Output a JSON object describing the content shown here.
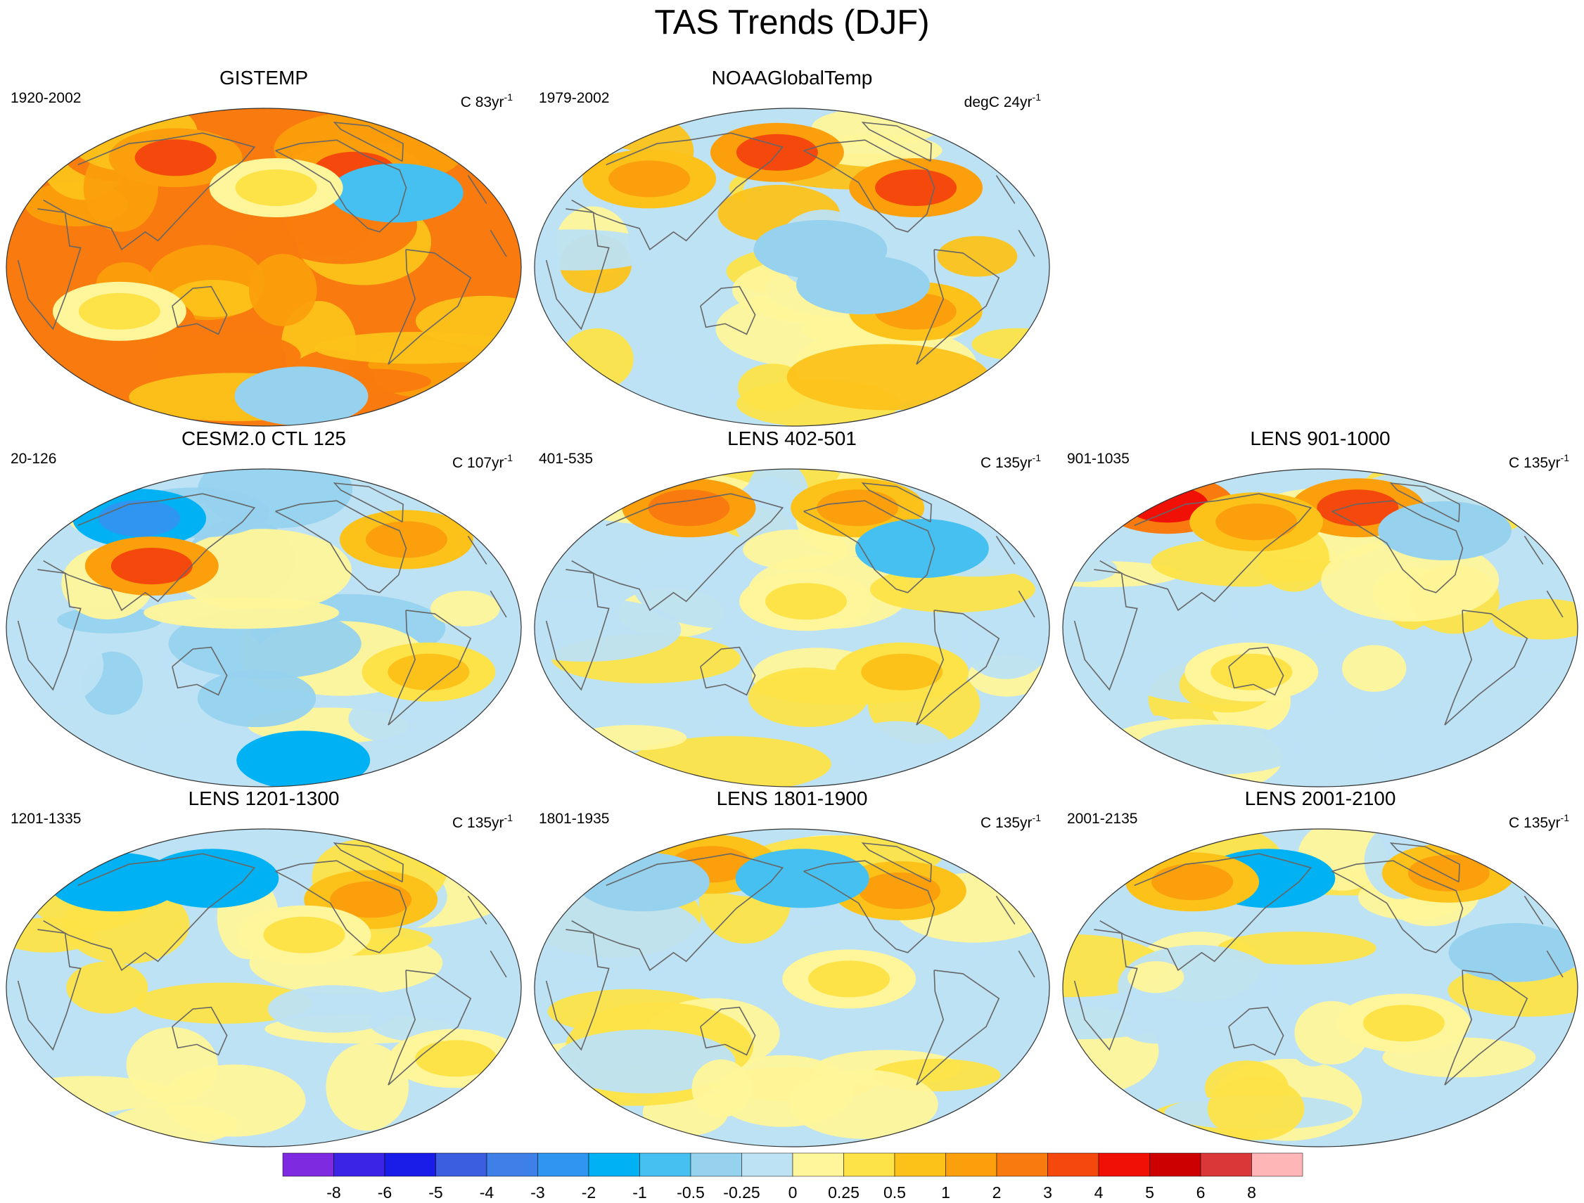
{
  "title": "TAS Trends (DJF)",
  "chart_data": [
    {
      "type": "heatmap",
      "title": "GISTEMP",
      "period": "1920-2002",
      "units": "C 83yr",
      "units_sup": "-1",
      "dominant": [
        2,
        1,
        0.5
      ],
      "features": [
        {
          "lon": -100,
          "lat": 55,
          "v": 3
        },
        {
          "lon": 95,
          "lat": 62,
          "v": 3
        },
        {
          "lon": -75,
          "lat": 42,
          "v": -1
        },
        {
          "lon": -170,
          "lat": 45,
          "v": 0.25
        },
        {
          "lon": 75,
          "lat": -25,
          "v": 0.25
        },
        {
          "lon": -135,
          "lat": -73,
          "v": -0.5
        }
      ]
    },
    {
      "type": "heatmap",
      "title": "NOAAGlobalTemp",
      "period": "1979-2002",
      "units": "degC 24yr",
      "units_sup": "-1",
      "dominant": [
        -0.25,
        0,
        0.25,
        0.5
      ],
      "features": [
        {
          "lon": -160,
          "lat": 10,
          "v": -0.5
        },
        {
          "lon": -90,
          "lat": -25,
          "v": 1
        },
        {
          "lon": -80,
          "lat": 45,
          "v": 3
        },
        {
          "lon": 165,
          "lat": 65,
          "v": 3
        },
        {
          "lon": -130,
          "lat": -10,
          "v": -0.5
        },
        {
          "lon": 60,
          "lat": 50,
          "v": 1
        }
      ]
    },
    {
      "type": "heatmap",
      "title": "CESM2.0 CTL 125",
      "period": "20-126",
      "units": "C 107yr",
      "units_sup": "-1",
      "dominant": [
        -0.25,
        0,
        -0.5
      ],
      "features": [
        {
          "lon": 60,
          "lat": 62,
          "v": -3
        },
        {
          "lon": -60,
          "lat": 50,
          "v": 1
        },
        {
          "lon": -130,
          "lat": -75,
          "v": -2
        },
        {
          "lon": 95,
          "lat": 35,
          "v": 3
        },
        {
          "lon": -60,
          "lat": -25,
          "v": 0.5
        }
      ]
    },
    {
      "type": "heatmap",
      "title": "LENS 402-501",
      "period": "401-535",
      "units": "C 135yr",
      "units_sup": "-1",
      "dominant": [
        -0.25,
        0,
        0.25
      ],
      "features": [
        {
          "lon": 70,
          "lat": 68,
          "v": 2
        },
        {
          "lon": -110,
          "lat": 68,
          "v": 1
        },
        {
          "lon": -100,
          "lat": -25,
          "v": 0.5
        },
        {
          "lon": -170,
          "lat": 15,
          "v": 0.25
        },
        {
          "lon": -75,
          "lat": 45,
          "v": -1
        }
      ]
    },
    {
      "type": "heatmap",
      "title": "LENS 901-1000",
      "period": "901-1035",
      "units": "C 135yr",
      "units_sup": "-1",
      "dominant": [
        -0.25,
        0,
        0.25
      ],
      "features": [
        {
          "lon": 10,
          "lat": 70,
          "v": 4
        },
        {
          "lon": -140,
          "lat": 68,
          "v": 3
        },
        {
          "lon": 120,
          "lat": 60,
          "v": 1
        },
        {
          "lon": -70,
          "lat": 55,
          "v": -0.5
        },
        {
          "lon": 130,
          "lat": -25,
          "v": 0.25
        }
      ]
    },
    {
      "type": "heatmap",
      "title": "LENS 1201-1300",
      "period": "1201-1335",
      "units": "C 135yr",
      "units_sup": "-1",
      "dominant": [
        -0.25,
        0,
        0.25
      ],
      "features": [
        {
          "lon": 40,
          "lat": 60,
          "v": -2
        },
        {
          "lon": 130,
          "lat": 62,
          "v": -2
        },
        {
          "lon": -90,
          "lat": 50,
          "v": 1
        },
        {
          "lon": -150,
          "lat": 30,
          "v": 0.25
        },
        {
          "lon": -30,
          "lat": -40,
          "v": 0.25
        }
      ]
    },
    {
      "type": "heatmap",
      "title": "LENS 1801-1900",
      "period": "1801-1935",
      "units": "C 135yr",
      "units_sup": "-1",
      "dominant": [
        -0.25,
        0,
        0.25
      ],
      "features": [
        {
          "lon": -85,
          "lat": 55,
          "v": 1
        },
        {
          "lon": 90,
          "lat": 70,
          "v": 1
        },
        {
          "lon": -170,
          "lat": 62,
          "v": -1
        },
        {
          "lon": 40,
          "lat": 60,
          "v": -0.5
        },
        {
          "lon": -140,
          "lat": 5,
          "v": 0.25
        }
      ]
    },
    {
      "type": "heatmap",
      "title": "LENS 2001-2100",
      "period": "2001-2135",
      "units": "C 135yr",
      "units_sup": "-1",
      "dominant": [
        -0.25,
        0,
        0.25
      ],
      "features": [
        {
          "lon": 130,
          "lat": 62,
          "v": -2
        },
        {
          "lon": -50,
          "lat": 65,
          "v": 1
        },
        {
          "lon": 60,
          "lat": 60,
          "v": 1
        },
        {
          "lon": -120,
          "lat": -20,
          "v": 0.25
        },
        {
          "lon": -40,
          "lat": 20,
          "v": -0.5
        }
      ]
    }
  ],
  "colorbar": {
    "levels": [
      "-8",
      "-6",
      "-5",
      "-4",
      "-3",
      "-2",
      "-1",
      "-0.5",
      "-0.25",
      "0",
      "0.25",
      "0.5",
      "1",
      "2",
      "3",
      "4",
      "5",
      "6",
      "8"
    ],
    "level_values": [
      -8,
      -6,
      -5,
      -4,
      -3,
      -2,
      -1,
      -0.5,
      -0.25,
      0,
      0.25,
      0.5,
      1,
      2,
      3,
      4,
      5,
      6,
      8
    ],
    "colors": [
      "#7e2ae0",
      "#3a24e6",
      "#1a1ce8",
      "#3b5de0",
      "#3f80e8",
      "#2e95f0",
      "#00b2f4",
      "#45c0f0",
      "#96d2ee",
      "#bde2f4",
      "#fff59a",
      "#fde347",
      "#fcc21a",
      "#fb9f0c",
      "#f97a0e",
      "#f5480c",
      "#f01005",
      "#cc0000",
      "#da3838",
      "#ffb6b6"
    ]
  }
}
